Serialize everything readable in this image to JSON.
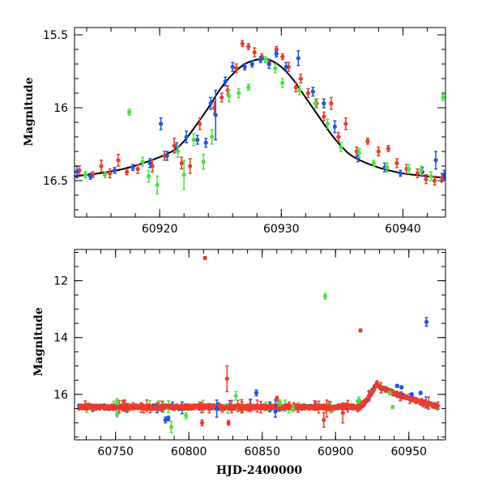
{
  "chart_data": [
    {
      "type": "scatter",
      "panel": "top",
      "title": "",
      "xlabel": "",
      "ylabel": "Magnitude",
      "xlim": [
        60913,
        60943.5
      ],
      "ylim": [
        16.75,
        15.45
      ],
      "y_inverted": true,
      "xticks_major": [
        60920,
        60930,
        60940
      ],
      "xtick_labels": [
        "60920",
        "60930",
        "60940"
      ],
      "yticks_major": [
        15.5,
        16,
        16.5
      ],
      "ytick_labels": [
        "15.5",
        "16",
        "16.5"
      ],
      "colors": {
        "red": "#ee3a2a",
        "blue": "#1e55e0",
        "green": "#4fe045",
        "model": "#000000"
      },
      "model_curve": {
        "name": "model",
        "x": [
          60913,
          60915,
          60917,
          60919,
          60921,
          60922,
          60923,
          60924,
          60925,
          60926,
          60927,
          60928,
          60928.5,
          60929,
          60930,
          60931,
          60932,
          60933,
          60934,
          60935,
          60936,
          60938,
          60940,
          60942,
          60943.5
        ],
        "y": [
          16.47,
          16.45,
          16.42,
          16.37,
          16.3,
          16.23,
          16.12,
          16.0,
          15.87,
          15.77,
          15.7,
          15.67,
          15.665,
          15.67,
          15.72,
          15.81,
          15.93,
          16.05,
          16.17,
          16.27,
          16.34,
          16.41,
          16.45,
          16.47,
          16.48
        ]
      },
      "series": [
        {
          "name": "red",
          "points": [
            [
              60913.4,
              16.43,
              0.03
            ],
            [
              60914.5,
              16.46,
              0.02
            ],
            [
              60915.2,
              16.4,
              0.04
            ],
            [
              60915.9,
              16.45,
              0.03
            ],
            [
              60916.6,
              16.36,
              0.04
            ],
            [
              60917.3,
              16.44,
              0.02
            ],
            [
              60918.2,
              16.42,
              0.03
            ],
            [
              60919.4,
              16.4,
              0.04
            ],
            [
              60920.4,
              16.33,
              0.03
            ],
            [
              60921.2,
              16.26,
              0.05
            ],
            [
              60921.8,
              16.38,
              0.04
            ],
            [
              60922.5,
              16.4,
              0.05
            ],
            [
              60923.3,
              16.11,
              0.04
            ],
            [
              60924.5,
              16.0,
              0.04
            ],
            [
              60925.1,
              15.93,
              0.03
            ],
            [
              60925.6,
              15.88,
              0.03
            ],
            [
              60926.3,
              15.73,
              0.03
            ],
            [
              60926.8,
              15.56,
              0.02
            ],
            [
              60927.3,
              15.58,
              0.02
            ],
            [
              60927.8,
              15.62,
              0.03
            ],
            [
              60928.4,
              15.65,
              0.02
            ],
            [
              60929.0,
              15.69,
              0.02
            ],
            [
              60929.6,
              15.6,
              0.02
            ],
            [
              60930.1,
              15.65,
              0.02
            ],
            [
              60930.6,
              15.72,
              0.03
            ],
            [
              60931.2,
              15.86,
              0.03
            ],
            [
              60931.6,
              15.8,
              0.03
            ],
            [
              60932.2,
              15.9,
              0.03
            ],
            [
              60932.9,
              15.97,
              0.03
            ],
            [
              60933.5,
              16.06,
              0.03
            ],
            [
              60934.1,
              15.97,
              0.04
            ],
            [
              60934.7,
              16.2,
              0.03
            ],
            [
              60935.3,
              16.11,
              0.04
            ],
            [
              60936.2,
              16.3,
              0.03
            ],
            [
              60937.1,
              16.23,
              0.02
            ],
            [
              60938.0,
              16.3,
              0.03
            ],
            [
              60938.8,
              16.28,
              0.02
            ],
            [
              60939.5,
              16.38,
              0.03
            ],
            [
              60940.3,
              16.42,
              0.03
            ],
            [
              60941.2,
              16.45,
              0.03
            ],
            [
              60941.9,
              16.49,
              0.03
            ],
            [
              60942.6,
              16.5,
              0.03
            ],
            [
              60943.2,
              16.48,
              0.03
            ]
          ]
        },
        {
          "name": "blue",
          "points": [
            [
              60913.2,
              16.44,
              0.04
            ],
            [
              60914.3,
              16.47,
              0.02
            ],
            [
              60916.3,
              16.43,
              0.02
            ],
            [
              60917.8,
              16.41,
              0.02
            ],
            [
              60919.2,
              16.38,
              0.03
            ],
            [
              60920.1,
              16.11,
              0.04
            ],
            [
              60920.6,
              16.33,
              0.03
            ],
            [
              60921.4,
              16.27,
              0.03
            ],
            [
              60922.2,
              16.2,
              0.04
            ],
            [
              60923.1,
              16.22,
              0.03
            ],
            [
              60923.8,
              16.24,
              0.03
            ],
            [
              60924.2,
              15.97,
              0.04
            ],
            [
              60924.6,
              16.05,
              0.17
            ],
            [
              60925.4,
              15.82,
              0.03
            ],
            [
              60926.0,
              15.72,
              0.03
            ],
            [
              60927.0,
              15.72,
              0.02
            ],
            [
              60927.6,
              15.7,
              0.02
            ],
            [
              60928.3,
              15.67,
              0.02
            ],
            [
              60929.0,
              15.7,
              0.03
            ],
            [
              60929.6,
              15.63,
              0.02
            ],
            [
              60930.4,
              15.72,
              0.03
            ],
            [
              60931.4,
              15.66,
              0.05
            ],
            [
              60932.6,
              15.89,
              0.03
            ],
            [
              60933.5,
              15.97,
              0.03
            ],
            [
              60934.4,
              16.13,
              0.04
            ],
            [
              60936.3,
              16.34,
              0.03
            ],
            [
              60938.5,
              16.41,
              0.03
            ],
            [
              60939.8,
              16.45,
              0.02
            ],
            [
              60941.6,
              16.44,
              0.03
            ],
            [
              60942.7,
              16.36,
              0.06
            ],
            [
              60943.4,
              16.46,
              0.03
            ]
          ]
        },
        {
          "name": "green",
          "points": [
            [
              60913.9,
              16.46,
              0.02
            ],
            [
              60915.5,
              16.46,
              0.02
            ],
            [
              60917.5,
              16.03,
              0.02
            ],
            [
              60918.6,
              16.37,
              0.03
            ],
            [
              60919.1,
              16.47,
              0.04
            ],
            [
              60919.8,
              16.53,
              0.06
            ],
            [
              60921.5,
              16.3,
              0.04
            ],
            [
              60922.0,
              16.46,
              0.1
            ],
            [
              60922.8,
              16.22,
              0.04
            ],
            [
              60923.6,
              16.37,
              0.05
            ],
            [
              60924.3,
              16.2,
              0.05
            ],
            [
              60925.7,
              15.92,
              0.04
            ],
            [
              60926.5,
              15.9,
              0.03
            ],
            [
              60927.3,
              15.86,
              0.02
            ],
            [
              60928.7,
              15.67,
              0.02
            ],
            [
              60929.5,
              15.73,
              0.03
            ],
            [
              60930.1,
              15.83,
              0.03
            ],
            [
              60931.5,
              15.88,
              0.03
            ],
            [
              60932.8,
              15.97,
              0.03
            ],
            [
              60933.8,
              16.11,
              0.03
            ],
            [
              60934.9,
              16.27,
              0.03
            ],
            [
              60936.4,
              16.31,
              0.03
            ],
            [
              60937.6,
              16.38,
              0.02
            ],
            [
              60938.7,
              16.41,
              0.03
            ],
            [
              60940.5,
              16.42,
              0.03
            ],
            [
              60941.5,
              16.43,
              0.03
            ],
            [
              60942.3,
              16.47,
              0.03
            ],
            [
              60943.3,
              15.93,
              0.02
            ]
          ]
        }
      ]
    },
    {
      "type": "scatter",
      "panel": "bottom",
      "title": "",
      "xlabel": "HJD-2400000",
      "ylabel": "Magnitude",
      "xlim": [
        60722,
        60975
      ],
      "ylim": [
        17.6,
        10.9
      ],
      "y_inverted": true,
      "xticks_major": [
        60750,
        60800,
        60850,
        60900,
        60950
      ],
      "xtick_labels": [
        "60750",
        "60800",
        "60850",
        "60900",
        "60950"
      ],
      "yticks_major": [
        12,
        14,
        16
      ],
      "ytick_labels": [
        "12",
        "14",
        "16"
      ],
      "baseline": {
        "x_start": 60725,
        "x_end": 60915,
        "mag": 16.45
      },
      "event": {
        "rise_start": 60915,
        "peak_x": 60928,
        "peak_mag": 15.62,
        "decay_end": 60970
      },
      "series": [
        {
          "name": "red",
          "outliers": [
            [
              60811,
              11.2,
              0.05
            ],
            [
              60917,
              13.75,
              0.05
            ],
            [
              60826,
              15.45,
              0.45
            ],
            [
              60827,
              17.0,
              0.08
            ],
            [
              60809,
              17.0,
              0.1
            ],
            [
              60892,
              16.9,
              0.25
            ],
            [
              60894,
              16.5,
              0.3
            ],
            [
              60905,
              16.65,
              0.35
            ],
            [
              60860,
              16.15,
              0.08
            ],
            [
              60849,
              16.45,
              0.2
            ]
          ]
        },
        {
          "name": "blue",
          "outliers": [
            [
              60962,
              13.45,
              0.15
            ],
            [
              60958,
              15.95,
              0.05
            ],
            [
              60942,
              15.7,
              0.05
            ],
            [
              60945,
              15.75,
              0.05
            ],
            [
              60952,
              16.0,
              0.05
            ],
            [
              60846,
              15.95,
              0.1
            ],
            [
              60784,
              16.9,
              0.1
            ],
            [
              60786,
              16.85,
              0.08
            ],
            [
              60819,
              16.5,
              0.3
            ],
            [
              60859,
              16.6,
              0.2
            ]
          ]
        },
        {
          "name": "green",
          "outliers": [
            [
              60893,
              12.55,
              0.1
            ],
            [
              60937,
              15.95,
              0.05
            ],
            [
              60751,
              16.25,
              0.1
            ],
            [
              60788,
              17.15,
              0.2
            ],
            [
              60798,
              16.75,
              0.1
            ],
            [
              60832,
              16.05,
              0.15
            ],
            [
              60862,
              16.3,
              0.1
            ],
            [
              60871,
              16.5,
              0.1
            ],
            [
              60916,
              16.2,
              0.1
            ],
            [
              60939,
              16.45,
              0.05
            ],
            [
              60751,
              16.7,
              0.1
            ]
          ]
        }
      ]
    }
  ]
}
